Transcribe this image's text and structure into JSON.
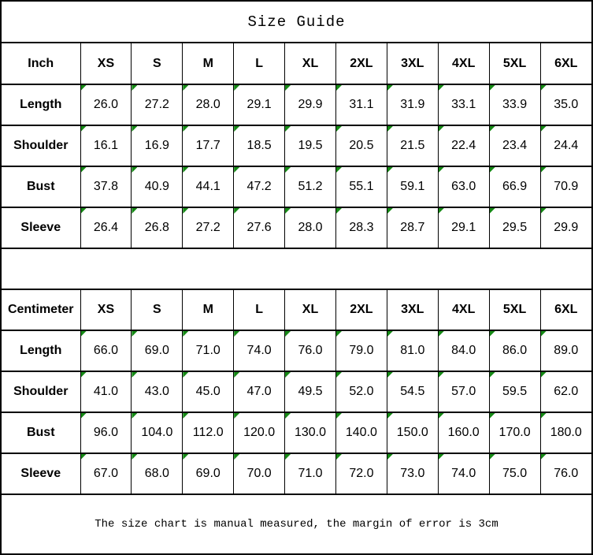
{
  "title": "Size Guide",
  "footer_note": "The size chart is manual measured, the margin of error is 3cm",
  "colors": {
    "marker_green": "#168a16",
    "border_black": "#000000",
    "background": "#ffffff"
  },
  "tables": [
    {
      "unit_label": "Inch",
      "size_headers": [
        "XS",
        "S",
        "M",
        "L",
        "XL",
        "2XL",
        "3XL",
        "4XL",
        "5XL",
        "6XL"
      ],
      "rows": [
        {
          "label": "Length",
          "values": [
            "26.0",
            "27.2",
            "28.0",
            "29.1",
            "29.9",
            "31.1",
            "31.9",
            "33.1",
            "33.9",
            "35.0"
          ]
        },
        {
          "label": "Shoulder",
          "values": [
            "16.1",
            "16.9",
            "17.7",
            "18.5",
            "19.5",
            "20.5",
            "21.5",
            "22.4",
            "23.4",
            "24.4"
          ]
        },
        {
          "label": "Bust",
          "values": [
            "37.8",
            "40.9",
            "44.1",
            "47.2",
            "51.2",
            "55.1",
            "59.1",
            "63.0",
            "66.9",
            "70.9"
          ]
        },
        {
          "label": "Sleeve",
          "values": [
            "26.4",
            "26.8",
            "27.2",
            "27.6",
            "28.0",
            "28.3",
            "28.7",
            "29.1",
            "29.5",
            "29.9"
          ]
        }
      ]
    },
    {
      "unit_label": "Centimeter",
      "size_headers": [
        "XS",
        "S",
        "M",
        "L",
        "XL",
        "2XL",
        "3XL",
        "4XL",
        "5XL",
        "6XL"
      ],
      "rows": [
        {
          "label": "Length",
          "values": [
            "66.0",
            "69.0",
            "71.0",
            "74.0",
            "76.0",
            "79.0",
            "81.0",
            "84.0",
            "86.0",
            "89.0"
          ]
        },
        {
          "label": "Shoulder",
          "values": [
            "41.0",
            "43.0",
            "45.0",
            "47.0",
            "49.5",
            "52.0",
            "54.5",
            "57.0",
            "59.5",
            "62.0"
          ]
        },
        {
          "label": "Bust",
          "values": [
            "96.0",
            "104.0",
            "112.0",
            "120.0",
            "130.0",
            "140.0",
            "150.0",
            "160.0",
            "170.0",
            "180.0"
          ]
        },
        {
          "label": "Sleeve",
          "values": [
            "67.0",
            "68.0",
            "69.0",
            "70.0",
            "71.0",
            "72.0",
            "73.0",
            "74.0",
            "75.0",
            "76.0"
          ]
        }
      ]
    }
  ]
}
